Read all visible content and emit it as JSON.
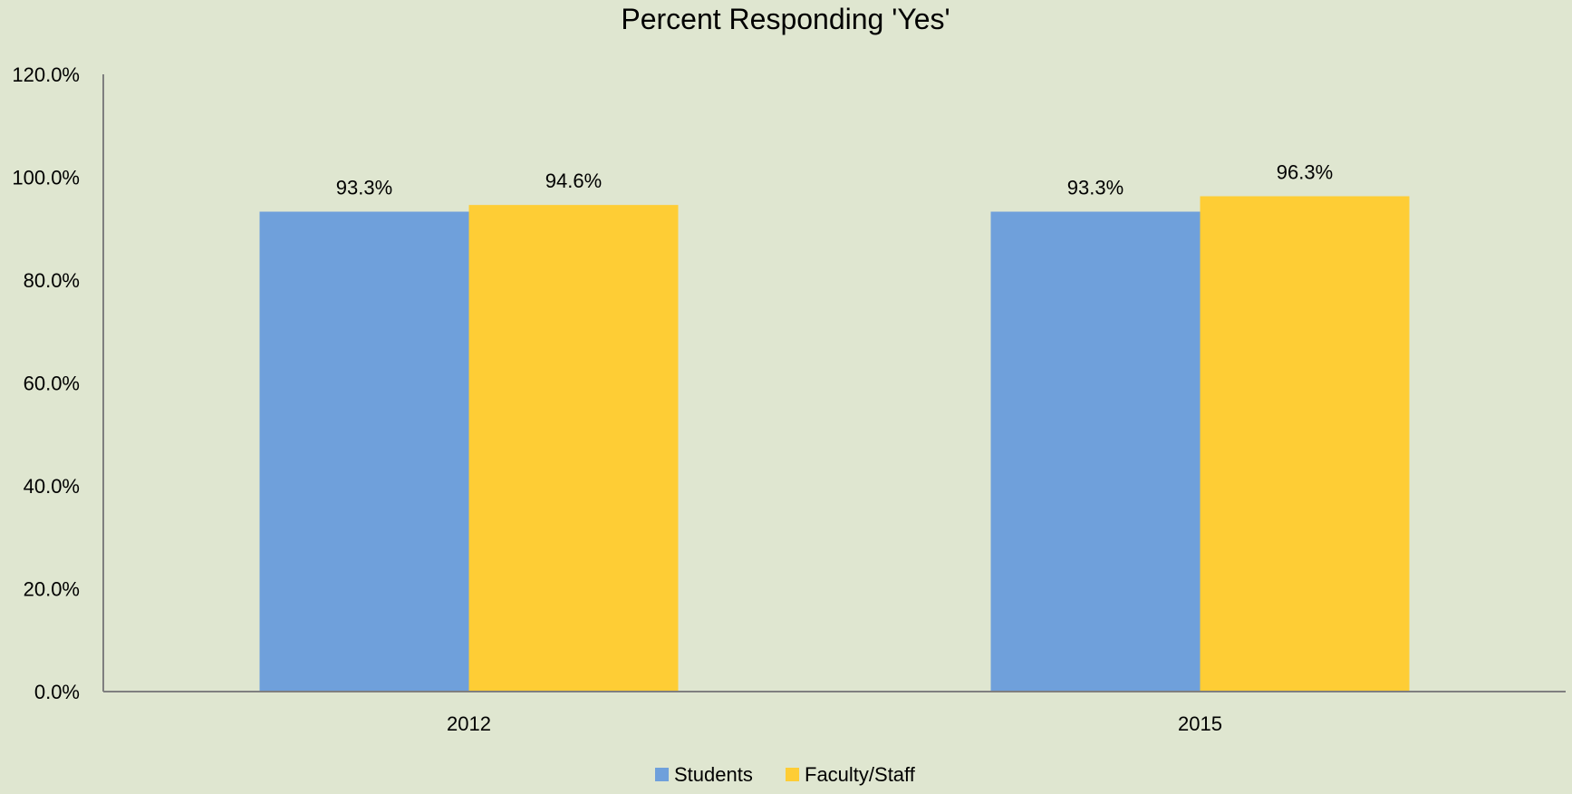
{
  "chart_data": {
    "type": "bar",
    "title": "Percent Responding 'Yes'",
    "xlabel": "",
    "ylabel": "",
    "categories": [
      "2012",
      "2015"
    ],
    "series": [
      {
        "name": "Students",
        "values": [
          93.3,
          93.3
        ],
        "labels": [
          "93.3%",
          "93.3%"
        ],
        "color": "#6fa0db"
      },
      {
        "name": "Faculty/Staff",
        "values": [
          94.6,
          96.3
        ],
        "labels": [
          "94.6%",
          "96.3%"
        ],
        "color": "#fecd35"
      }
    ],
    "ylim": [
      0,
      120
    ],
    "yticks": [
      "0.0%",
      "20.0%",
      "40.0%",
      "60.0%",
      "80.0%",
      "100.0%",
      "120.0%"
    ],
    "grid": false,
    "legend_position": "bottom"
  }
}
